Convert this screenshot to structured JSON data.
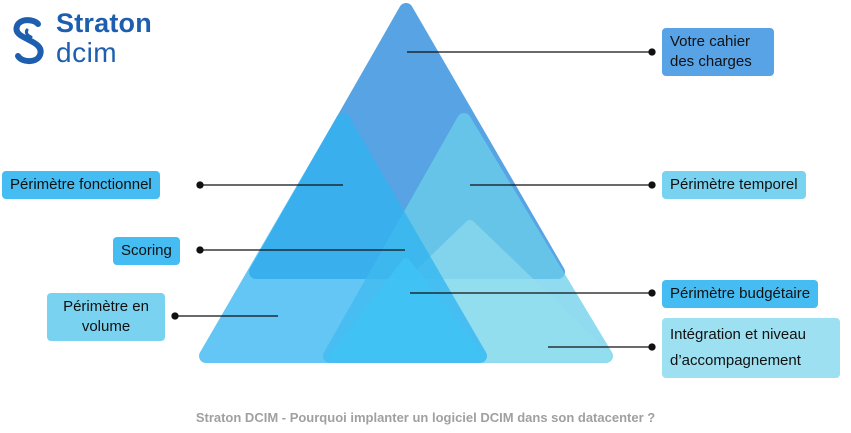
{
  "logo": {
    "name": "Straton",
    "sub": "dcim",
    "color": "#1d5fae"
  },
  "labels": {
    "cahier": "Votre cahier des charges",
    "fonctionnel": "Périmètre fonctionnel",
    "temporel": "Périmètre temporel",
    "scoring": "Scoring",
    "budgetaire": "Périmètre budgétaire",
    "volume": "Périmètre en volume",
    "integration": "Intégration et niveau d’accompagnement"
  },
  "caption": "Straton DCIM - Pourquoi implanter un logiciel DCIM dans son datacenter ?",
  "colors": {
    "top_triangle": "#4f9fe3",
    "left_triangle": "#2fb4f2",
    "right_triangle": "#6ccfea",
    "bottom_right_triangle": "#94e0f0",
    "bottom_left_triangle": "#3fc3f6"
  }
}
